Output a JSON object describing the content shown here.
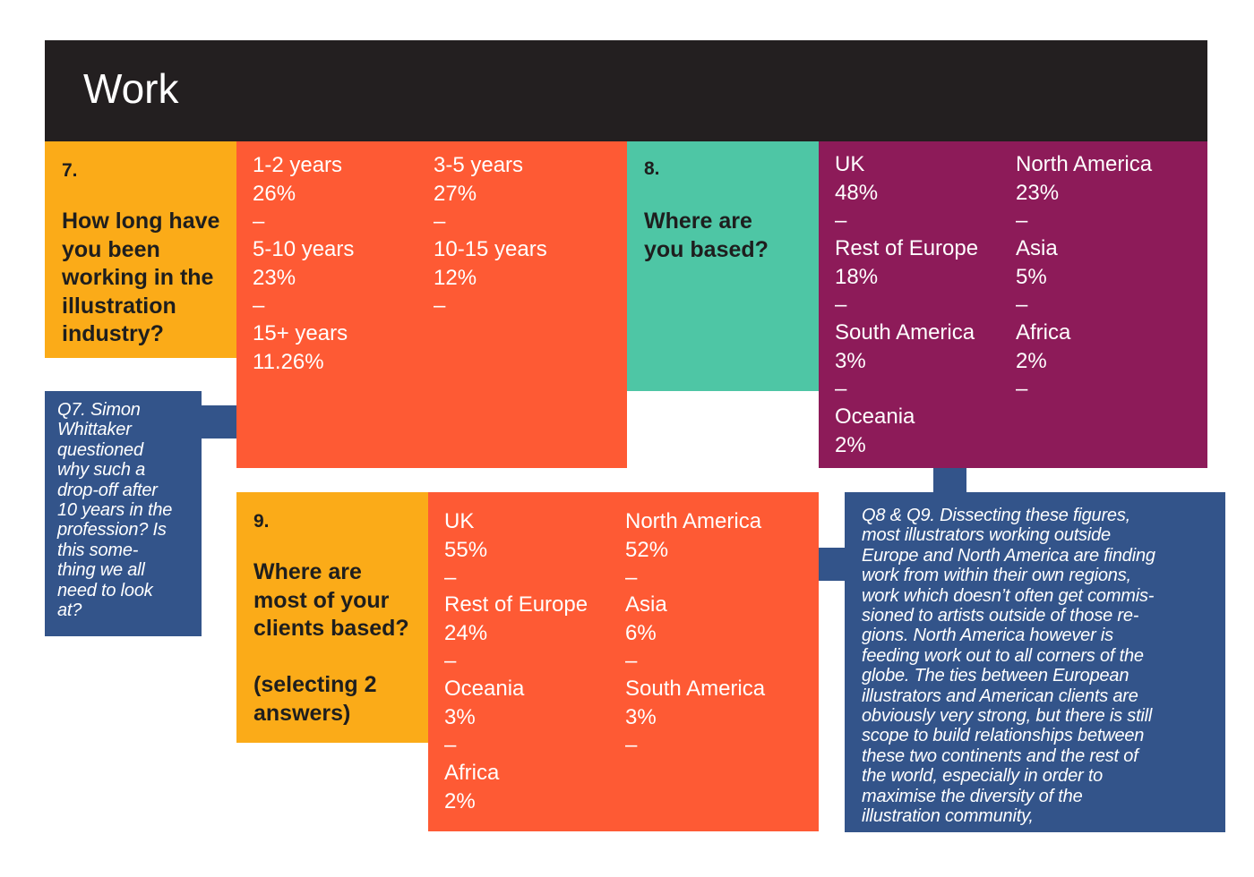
{
  "header": {
    "title": "Work"
  },
  "q7": {
    "number": "7.",
    "lines": [
      "How long have",
      "you been",
      "working in the",
      "illustration",
      "industry?"
    ],
    "answers": [
      {
        "label": "1-2 years",
        "value": "26%"
      },
      {
        "label": "3-5 years",
        "value": "27%"
      },
      {
        "label": "5-10 years",
        "value": "23%"
      },
      {
        "label": "10-15 years",
        "value": "12%"
      },
      {
        "label": "15+ years",
        "value": "11.26%"
      }
    ],
    "separator": "–",
    "note": [
      "Q7. Simon",
      "Whittaker",
      "questioned",
      "why such a",
      "drop-off after",
      "10 years in the",
      "profession? Is",
      "this some-",
      "thing we all",
      "need to look",
      "at?"
    ]
  },
  "q8": {
    "number": "8.",
    "lines": [
      "Where are",
      "you based?"
    ],
    "answers": [
      {
        "label": "UK",
        "value": "48%"
      },
      {
        "label": "North America",
        "value": "23%"
      },
      {
        "label": "Rest of Europe",
        "value": "18%"
      },
      {
        "label": "Asia",
        "value": "5%"
      },
      {
        "label": "South America",
        "value": "3%"
      },
      {
        "label": "Africa",
        "value": "2%"
      },
      {
        "label": "Oceania",
        "value": "2%"
      }
    ]
  },
  "q9": {
    "number": "9.",
    "lines": [
      "Where are",
      "most of your",
      "clients based?"
    ],
    "sub_lines": [
      "(selecting 2",
      "answers)"
    ],
    "answers": [
      {
        "label": "UK",
        "value": "55%"
      },
      {
        "label": "North America",
        "value": "52%"
      },
      {
        "label": "Rest of Europe",
        "value": "24%"
      },
      {
        "label": "Asia",
        "value": "6%"
      },
      {
        "label": "Oceania",
        "value": "3%"
      },
      {
        "label": "South America",
        "value": "3%"
      },
      {
        "label": "Africa",
        "value": "2%"
      }
    ]
  },
  "q8q9_note": {
    "lines": [
      "Q8 & Q9. Dissecting these figures,",
      "most illustrators working outside",
      "Europe and North America are finding",
      "work from within their own regions,",
      "work which doesn’t often get commis-",
      "sioned to artists outside of those re-",
      "gions.  North America however is",
      "feeding work out to all corners of the",
      "globe. The ties between European",
      "illustrators and American clients are",
      "obviously very strong, but there is still",
      "scope to build relationships between",
      "these two continents and the rest of",
      "the world, especially in order to",
      "maximise the diversity of the",
      "illustration community,"
    ]
  },
  "colors": {
    "header": "#231f20",
    "amber": "#fbab18",
    "orange": "#fe5a34",
    "teal": "#4ec6a5",
    "plum": "#8d1b59",
    "navy": "#33548a"
  }
}
